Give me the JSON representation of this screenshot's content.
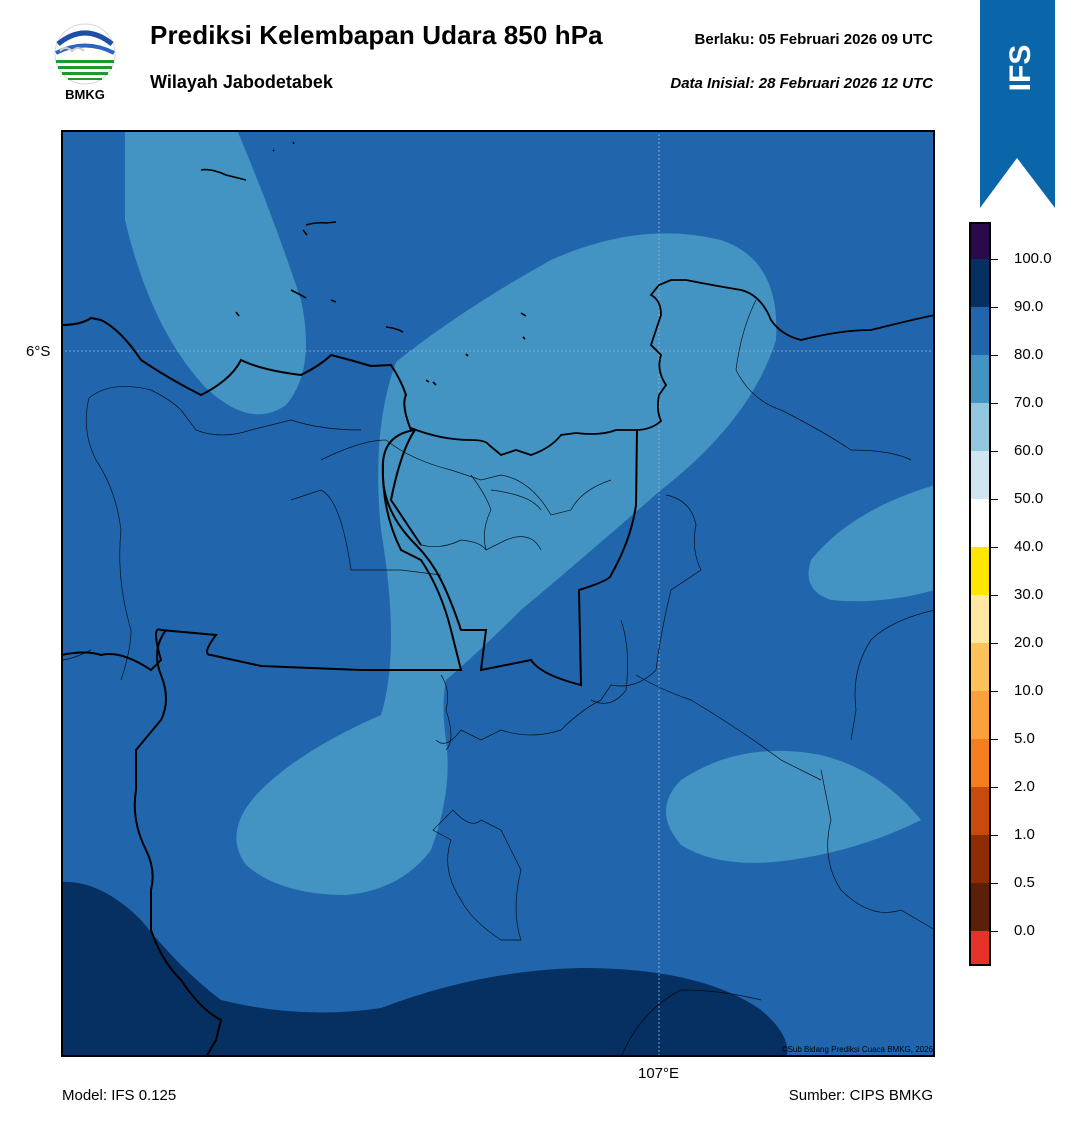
{
  "header": {
    "title": "Prediksi Kelembapan Udara 850 hPa",
    "subtitle": "Wilayah Jabodetabek",
    "valid_time": "Berlaku:  05 Februari 2026 09 UTC",
    "init_time": "Data Inisial:  28 Februari 2026 12 UTC",
    "logo_text": "BMKG",
    "model_badge": "IFS"
  },
  "map": {
    "lat_label": "6°S",
    "lon_label": "107°E",
    "copyright": "©Sub Bidang Prediksi Cuaca BMKG, 2026",
    "colors": {
      "base_80_90": "#2166ac",
      "band_70_80": "#4393c3",
      "band_90_100": "#053061",
      "coastline": "#000000"
    }
  },
  "footer": {
    "model": "Model: IFS 0.125",
    "source": "Sumber: CIPS BMKG"
  },
  "colorbar": {
    "labels": [
      "100.0",
      "90.0",
      "80.0",
      "70.0",
      "60.0",
      "50.0",
      "40.0",
      "30.0",
      "20.0",
      "10.0",
      "5.0",
      "2.0",
      "1.0",
      "0.5",
      "0.0"
    ],
    "colors_top_to_bottom": [
      "#2a0a4a",
      "#053061",
      "#2166ac",
      "#4393c3",
      "#92c5de",
      "#d1e5f0",
      "#ffffff",
      "#ffe500",
      "#ffe9a0",
      "#fdc35a",
      "#fba03a",
      "#f47d1d",
      "#c84a0c",
      "#8c2d04",
      "#5c1f08",
      "#a50f15",
      "#e7322a"
    ]
  }
}
